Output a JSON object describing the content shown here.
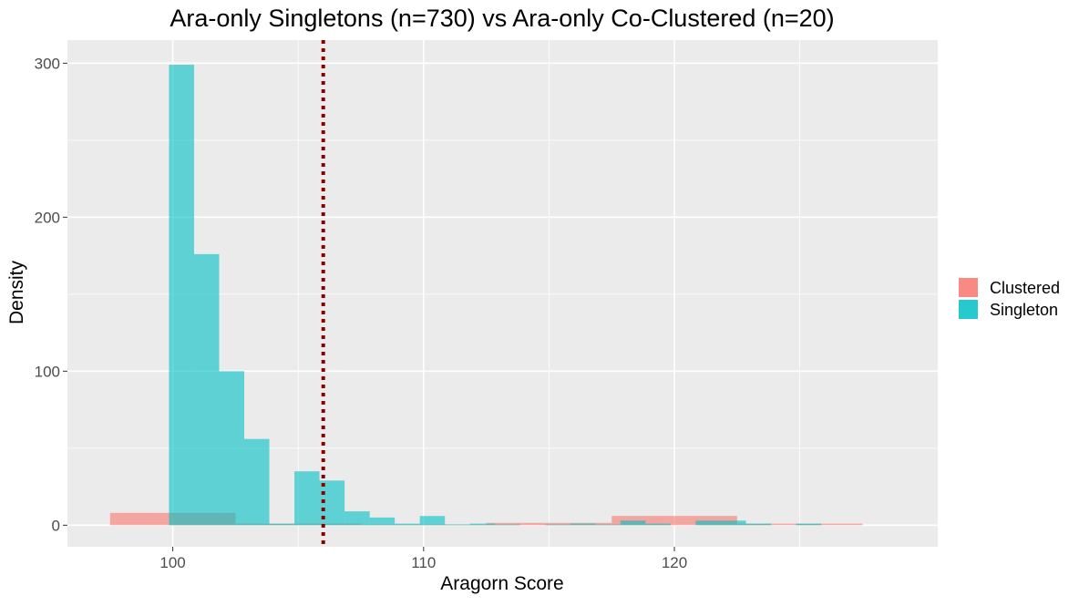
{
  "chart_data": {
    "type": "histogram",
    "title": "Ara-only Singletons (n=730) vs Ara-only Co-Clustered (n=20)",
    "xlabel": "Aragorn Score",
    "ylabel": "Density",
    "xlim": [
      95.8,
      130.5
    ],
    "ylim": [
      -14,
      315
    ],
    "x_ticks": [
      100,
      110,
      120
    ],
    "y_ticks": [
      0,
      100,
      200,
      300
    ],
    "grid": true,
    "panel_background": "#ebebeb",
    "grid_color": "#ffffff",
    "legend": {
      "position": "right",
      "entries": [
        {
          "label": "Clustered",
          "color": "#f8766d"
        },
        {
          "label": "Singleton",
          "color": "#00bfc4"
        }
      ]
    },
    "reference_line": {
      "x": 106,
      "style": "dotted",
      "color": "#8b0000"
    },
    "series": [
      {
        "name": "Clustered",
        "color": "#f8766d",
        "opacity": 0.6,
        "bins": [
          {
            "x0": 97.5,
            "x1": 102.5,
            "y": 8
          },
          {
            "x0": 102.5,
            "x1": 107.5,
            "y": 1
          },
          {
            "x0": 107.5,
            "x1": 112.5,
            "y": 0.5
          },
          {
            "x0": 112.5,
            "x1": 117.5,
            "y": 1.5
          },
          {
            "x0": 117.5,
            "x1": 122.5,
            "y": 6
          },
          {
            "x0": 122.5,
            "x1": 127.5,
            "y": 1
          }
        ]
      },
      {
        "name": "Singleton",
        "color": "#00bfc4",
        "opacity": 0.6,
        "bins": [
          {
            "x0": 99.85,
            "x1": 100.85,
            "y": 299
          },
          {
            "x0": 100.85,
            "x1": 101.85,
            "y": 176
          },
          {
            "x0": 101.85,
            "x1": 102.85,
            "y": 100
          },
          {
            "x0": 102.85,
            "x1": 103.85,
            "y": 56
          },
          {
            "x0": 103.85,
            "x1": 104.85,
            "y": 1
          },
          {
            "x0": 104.85,
            "x1": 105.85,
            "y": 35
          },
          {
            "x0": 105.85,
            "x1": 106.85,
            "y": 29
          },
          {
            "x0": 106.85,
            "x1": 107.85,
            "y": 9
          },
          {
            "x0": 107.85,
            "x1": 108.85,
            "y": 5
          },
          {
            "x0": 108.85,
            "x1": 109.85,
            "y": 1
          },
          {
            "x0": 109.85,
            "x1": 110.85,
            "y": 6
          },
          {
            "x0": 110.85,
            "x1": 111.85,
            "y": 0.5
          },
          {
            "x0": 111.85,
            "x1": 112.85,
            "y": 1
          },
          {
            "x0": 112.85,
            "x1": 113.85,
            "y": 0.5
          },
          {
            "x0": 114.85,
            "x1": 115.85,
            "y": 0.5
          },
          {
            "x0": 115.85,
            "x1": 116.85,
            "y": 1
          },
          {
            "x0": 116.85,
            "x1": 117.85,
            "y": 0.5
          },
          {
            "x0": 117.85,
            "x1": 118.85,
            "y": 3
          },
          {
            "x0": 118.85,
            "x1": 119.85,
            "y": 1
          },
          {
            "x0": 120.85,
            "x1": 121.85,
            "y": 3
          },
          {
            "x0": 121.85,
            "x1": 122.85,
            "y": 3
          },
          {
            "x0": 122.85,
            "x1": 123.85,
            "y": 1
          },
          {
            "x0": 124.85,
            "x1": 125.85,
            "y": 1
          }
        ]
      }
    ]
  }
}
